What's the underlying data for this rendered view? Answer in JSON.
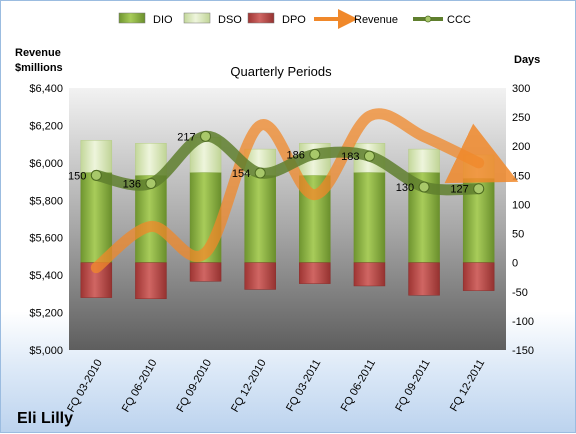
{
  "chart_data": {
    "type": "bar",
    "company": "Eli Lilly",
    "title": "Quarterly Periods",
    "left_axis_label": [
      "Revenue",
      "$millions"
    ],
    "right_axis_label": "Days",
    "categories": [
      "FQ 03-2010",
      "FQ 06-2010",
      "FQ 09-2010",
      "FQ 12-2010",
      "FQ 03-2011",
      "FQ 06-2011",
      "FQ 09-2011",
      "FQ 12-2011"
    ],
    "left_axis": {
      "min": 5000,
      "max": 6400,
      "step": 200,
      "ticks": [
        "$5,000",
        "$5,200",
        "$5,400",
        "$5,600",
        "$5,800",
        "$6,000",
        "$6,200",
        "$6,400"
      ]
    },
    "right_axis": {
      "min": -150,
      "max": 300,
      "step": 50,
      "ticks": [
        "-150",
        "-100",
        "-50",
        "0",
        "50",
        "100",
        "150",
        "200",
        "250",
        "300"
      ]
    },
    "legend": [
      "DIO",
      "DSO",
      "DPO",
      "Revenue",
      "CCC"
    ],
    "legend_position": "top",
    "series": [
      {
        "name": "DIO",
        "type": "bar",
        "axis": "right",
        "color": "#8db040",
        "values": [
          155,
          150,
          155,
          150,
          150,
          155,
          155,
          145
        ]
      },
      {
        "name": "DSO",
        "type": "bar",
        "axis": "right",
        "color": "#d7e6b0",
        "values": [
          55,
          55,
          60,
          45,
          55,
          50,
          40,
          40
        ]
      },
      {
        "name": "DPO",
        "type": "bar",
        "axis": "right",
        "color": "#c0504d",
        "values": [
          -60,
          -62,
          -32,
          -46,
          -36,
          -40,
          -56,
          -48
        ]
      },
      {
        "name": "Revenue",
        "type": "line",
        "axis": "left",
        "color": "#f0882a",
        "values": [
          5440,
          5660,
          5520,
          6200,
          5830,
          6250,
          6140,
          6000
        ]
      },
      {
        "name": "CCC",
        "type": "line",
        "axis": "right",
        "color": "#5f7f2e",
        "values": [
          150,
          136,
          217,
          154,
          186,
          183,
          130,
          127
        ],
        "labels": [
          "150",
          "136",
          "217",
          "154",
          "186",
          "183",
          "130",
          "127"
        ]
      }
    ],
    "grid": false
  }
}
